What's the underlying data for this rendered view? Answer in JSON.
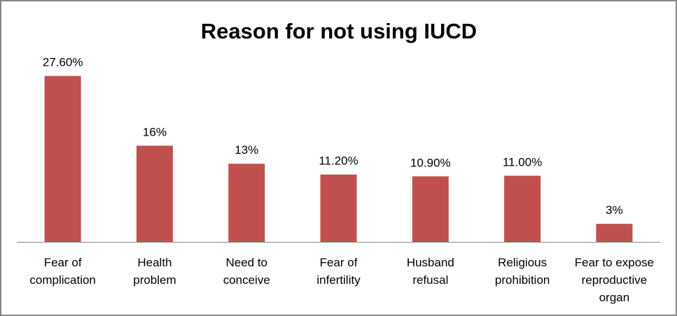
{
  "chart_data": {
    "type": "bar",
    "title": "Reason for not using IUCD",
    "xlabel": "",
    "ylabel": "",
    "categories": [
      [
        "Fear of",
        "complication"
      ],
      [
        "Health",
        "problem"
      ],
      [
        "Need to",
        "conceive"
      ],
      [
        "Fear of",
        "infertility"
      ],
      [
        "Husband",
        "refusal"
      ],
      [
        "Religious",
        "prohibition"
      ],
      [
        "Fear to expose",
        "reproductive",
        "organ"
      ]
    ],
    "values": [
      27.6,
      16,
      13,
      11.2,
      10.9,
      11.0,
      3
    ],
    "data_labels": [
      "27.60%",
      "16%",
      "13%",
      "11.20%",
      "10.90%",
      "11.00%",
      "3%"
    ],
    "ylim": [
      0,
      30
    ],
    "grid": false,
    "legend": "none",
    "bar_color": "#C0504D"
  }
}
